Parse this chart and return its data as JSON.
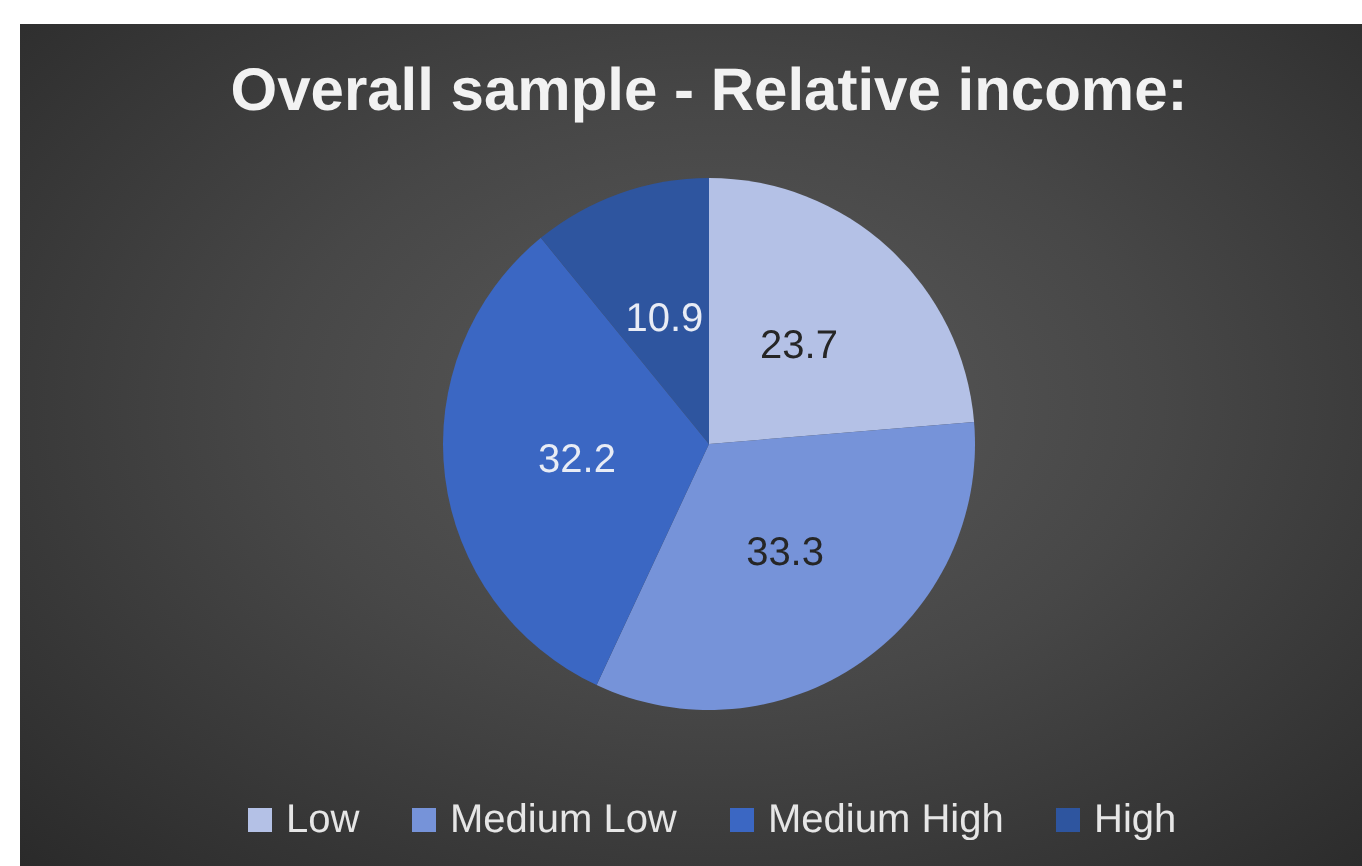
{
  "chart_data": {
    "type": "pie",
    "title": "Overall sample - Relative income:",
    "categories": [
      "Low",
      "Medium Low",
      "Medium High",
      "High"
    ],
    "values": [
      23.7,
      33.3,
      32.2,
      10.9
    ],
    "colors": [
      "#b4c1e6",
      "#7693d9",
      "#3b67c3",
      "#2e559f"
    ],
    "data_labels": true,
    "legend": "bottom"
  }
}
